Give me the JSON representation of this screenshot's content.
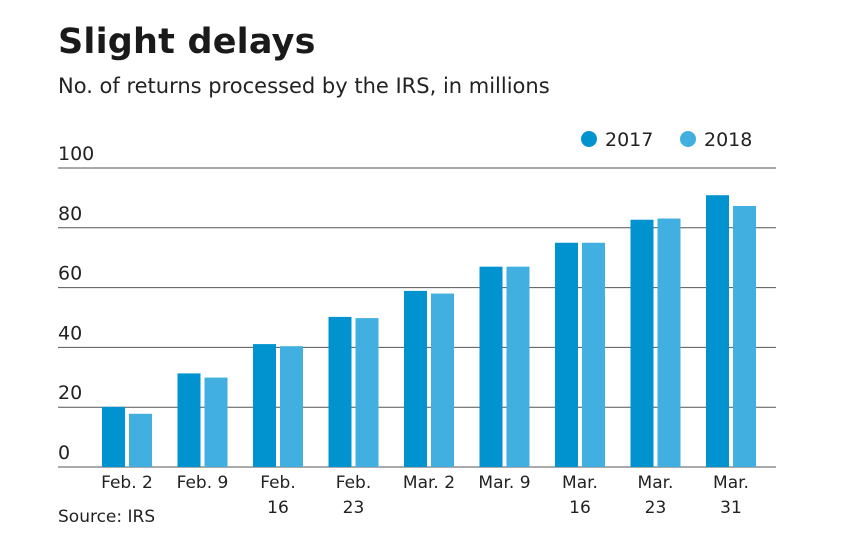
{
  "chart_data": {
    "type": "bar",
    "title": "Slight delays",
    "subtitle": "No. of returns processed by the IRS, in millions",
    "source": "Source: IRS",
    "categories": [
      [
        "Feb. 2"
      ],
      [
        "Feb. 9"
      ],
      [
        "Feb.",
        "16"
      ],
      [
        "Feb.",
        "23"
      ],
      [
        "Mar. 2"
      ],
      [
        "Mar. 9"
      ],
      [
        "Mar.",
        "16"
      ],
      [
        "Mar.",
        "23"
      ],
      [
        "Mar.",
        "31"
      ]
    ],
    "series": [
      {
        "name": "2017",
        "color": "#0093d0",
        "values": [
          20.1,
          31.3,
          41.1,
          50.2,
          58.9,
          67.0,
          75.0,
          82.7,
          90.9
        ]
      },
      {
        "name": "2018",
        "color": "#41afe0",
        "values": [
          17.8,
          29.9,
          40.4,
          49.8,
          58.0,
          67.0,
          75.0,
          83.1,
          87.3
        ]
      }
    ],
    "yticks": [
      0,
      20,
      40,
      60,
      80,
      100
    ],
    "ylim": [
      0,
      100
    ],
    "grid": true,
    "legend": "top-right",
    "xlabel": "",
    "ylabel": ""
  }
}
